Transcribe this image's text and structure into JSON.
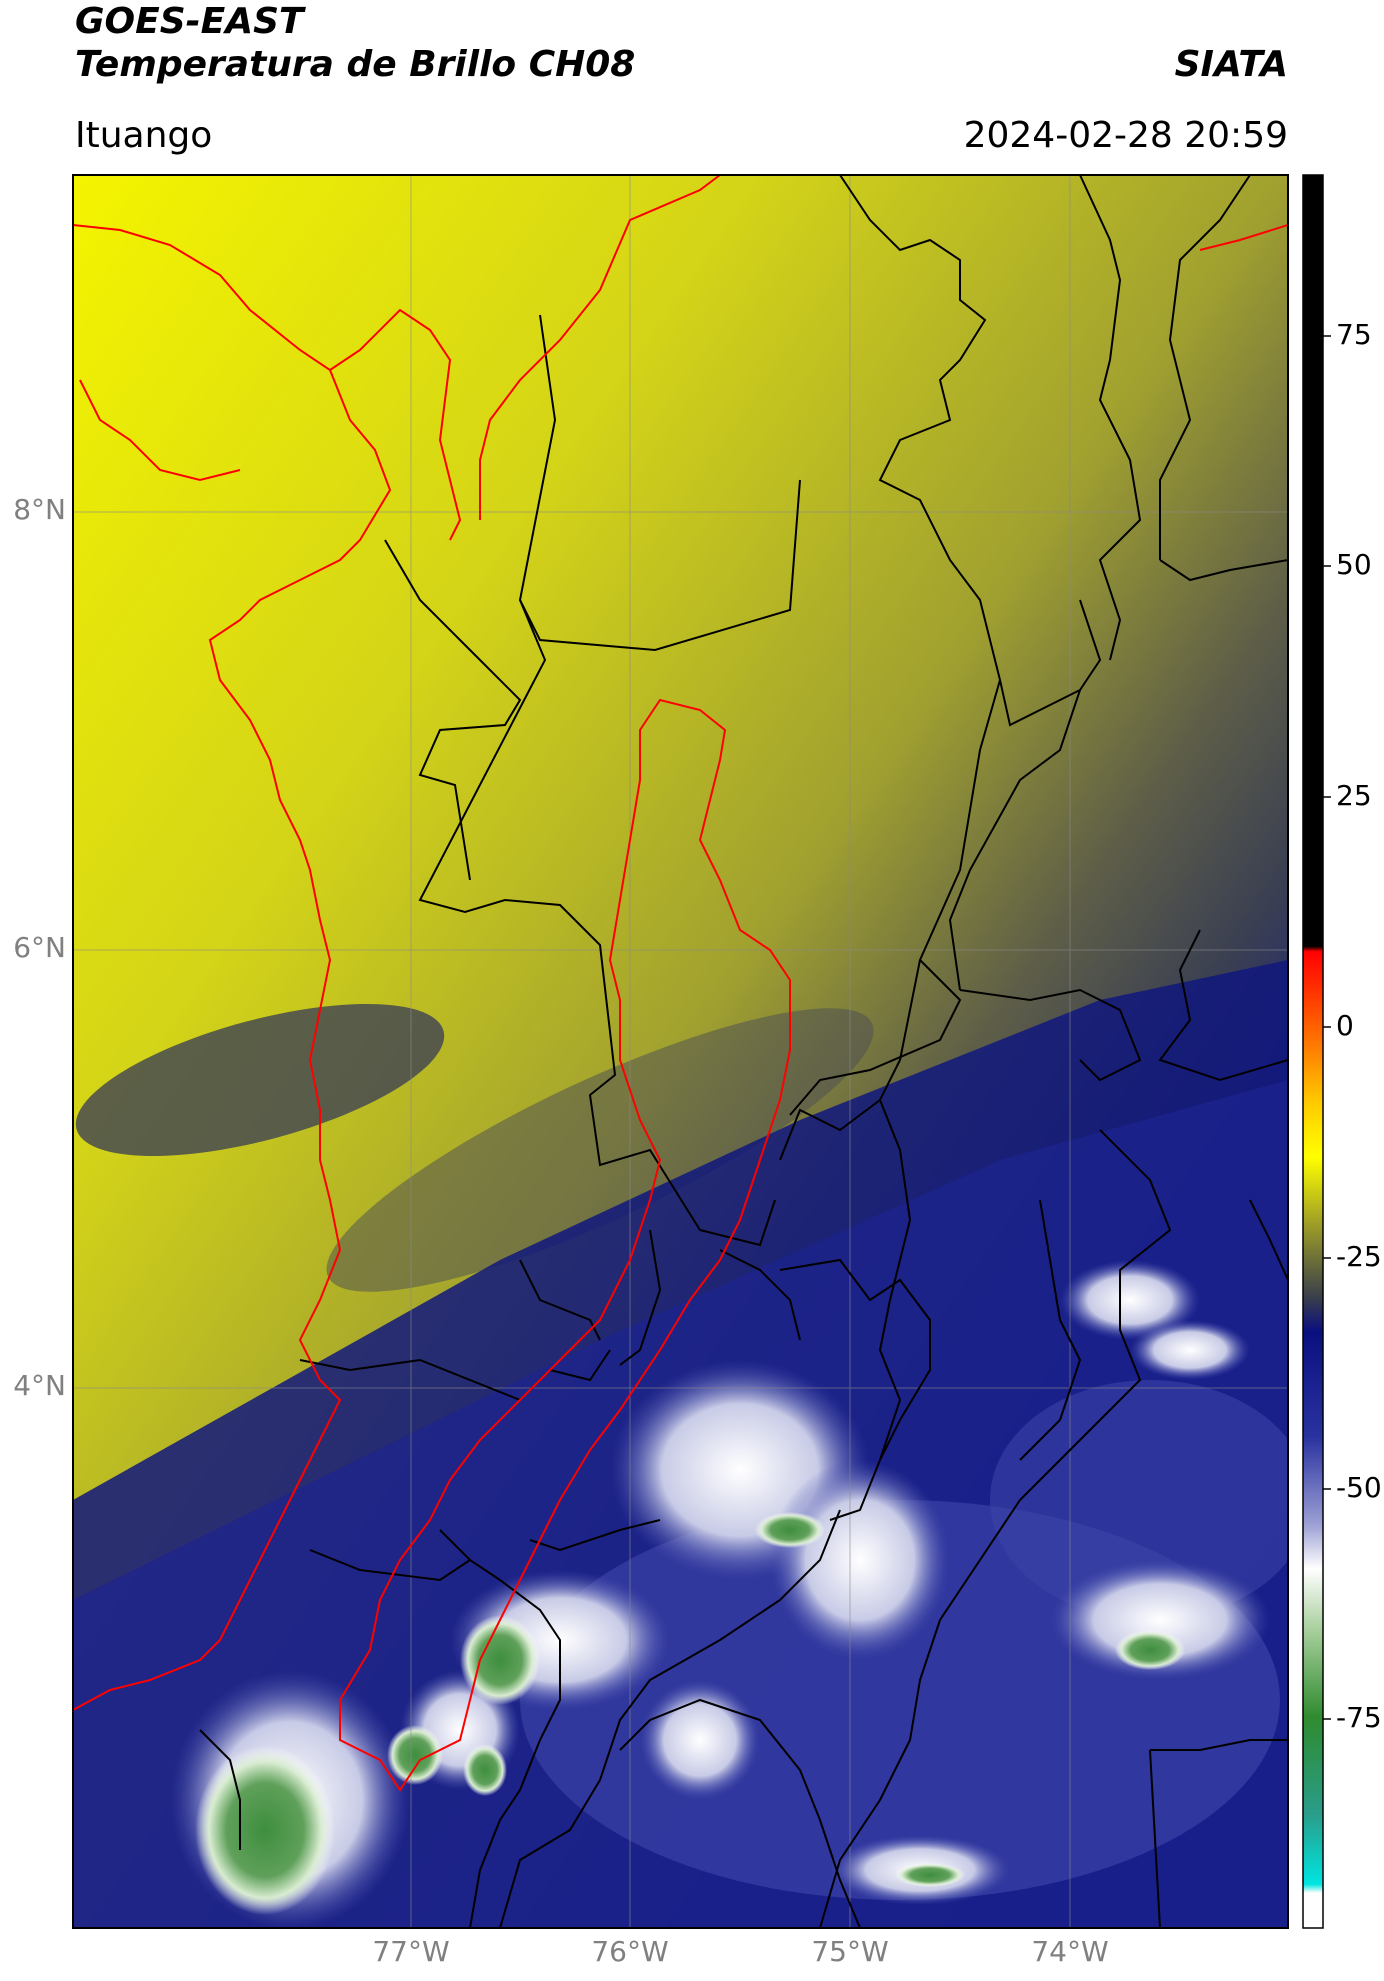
{
  "header": {
    "satellite": "GOES-EAST",
    "product": "Temperatura de Brillo CH08",
    "organization": "SIATA",
    "location": "Ituango",
    "datetime": "2024-02-28 20:59"
  },
  "axes": {
    "latitude_ticks": [
      "8°N",
      "6°N",
      "4°N"
    ],
    "longitude_ticks": [
      "77°W",
      "76°W",
      "75°W",
      "74°W"
    ]
  },
  "colorbar": {
    "tick_labels": [
      "75",
      "50",
      "25",
      "0",
      "-25",
      "-50",
      "-75"
    ],
    "tick_values": [
      75,
      50,
      25,
      0,
      -25,
      -50,
      -75
    ],
    "range": [
      -95,
      90
    ],
    "colors": {
      "warm_top": "#000000",
      "red": "#ff0000",
      "orange": "#ff8c00",
      "yellow": "#ffff00",
      "olive": "#9a9a28",
      "grey": "#3a3f4a",
      "navy": "#0a0f80",
      "blue": "#4a52b0",
      "white": "#ffffff",
      "green": "#2e8b2e",
      "cyan": "#00e5e0"
    }
  },
  "map": {
    "region_boundary_color": "#ff0000",
    "admin_boundary_color": "#000000"
  }
}
